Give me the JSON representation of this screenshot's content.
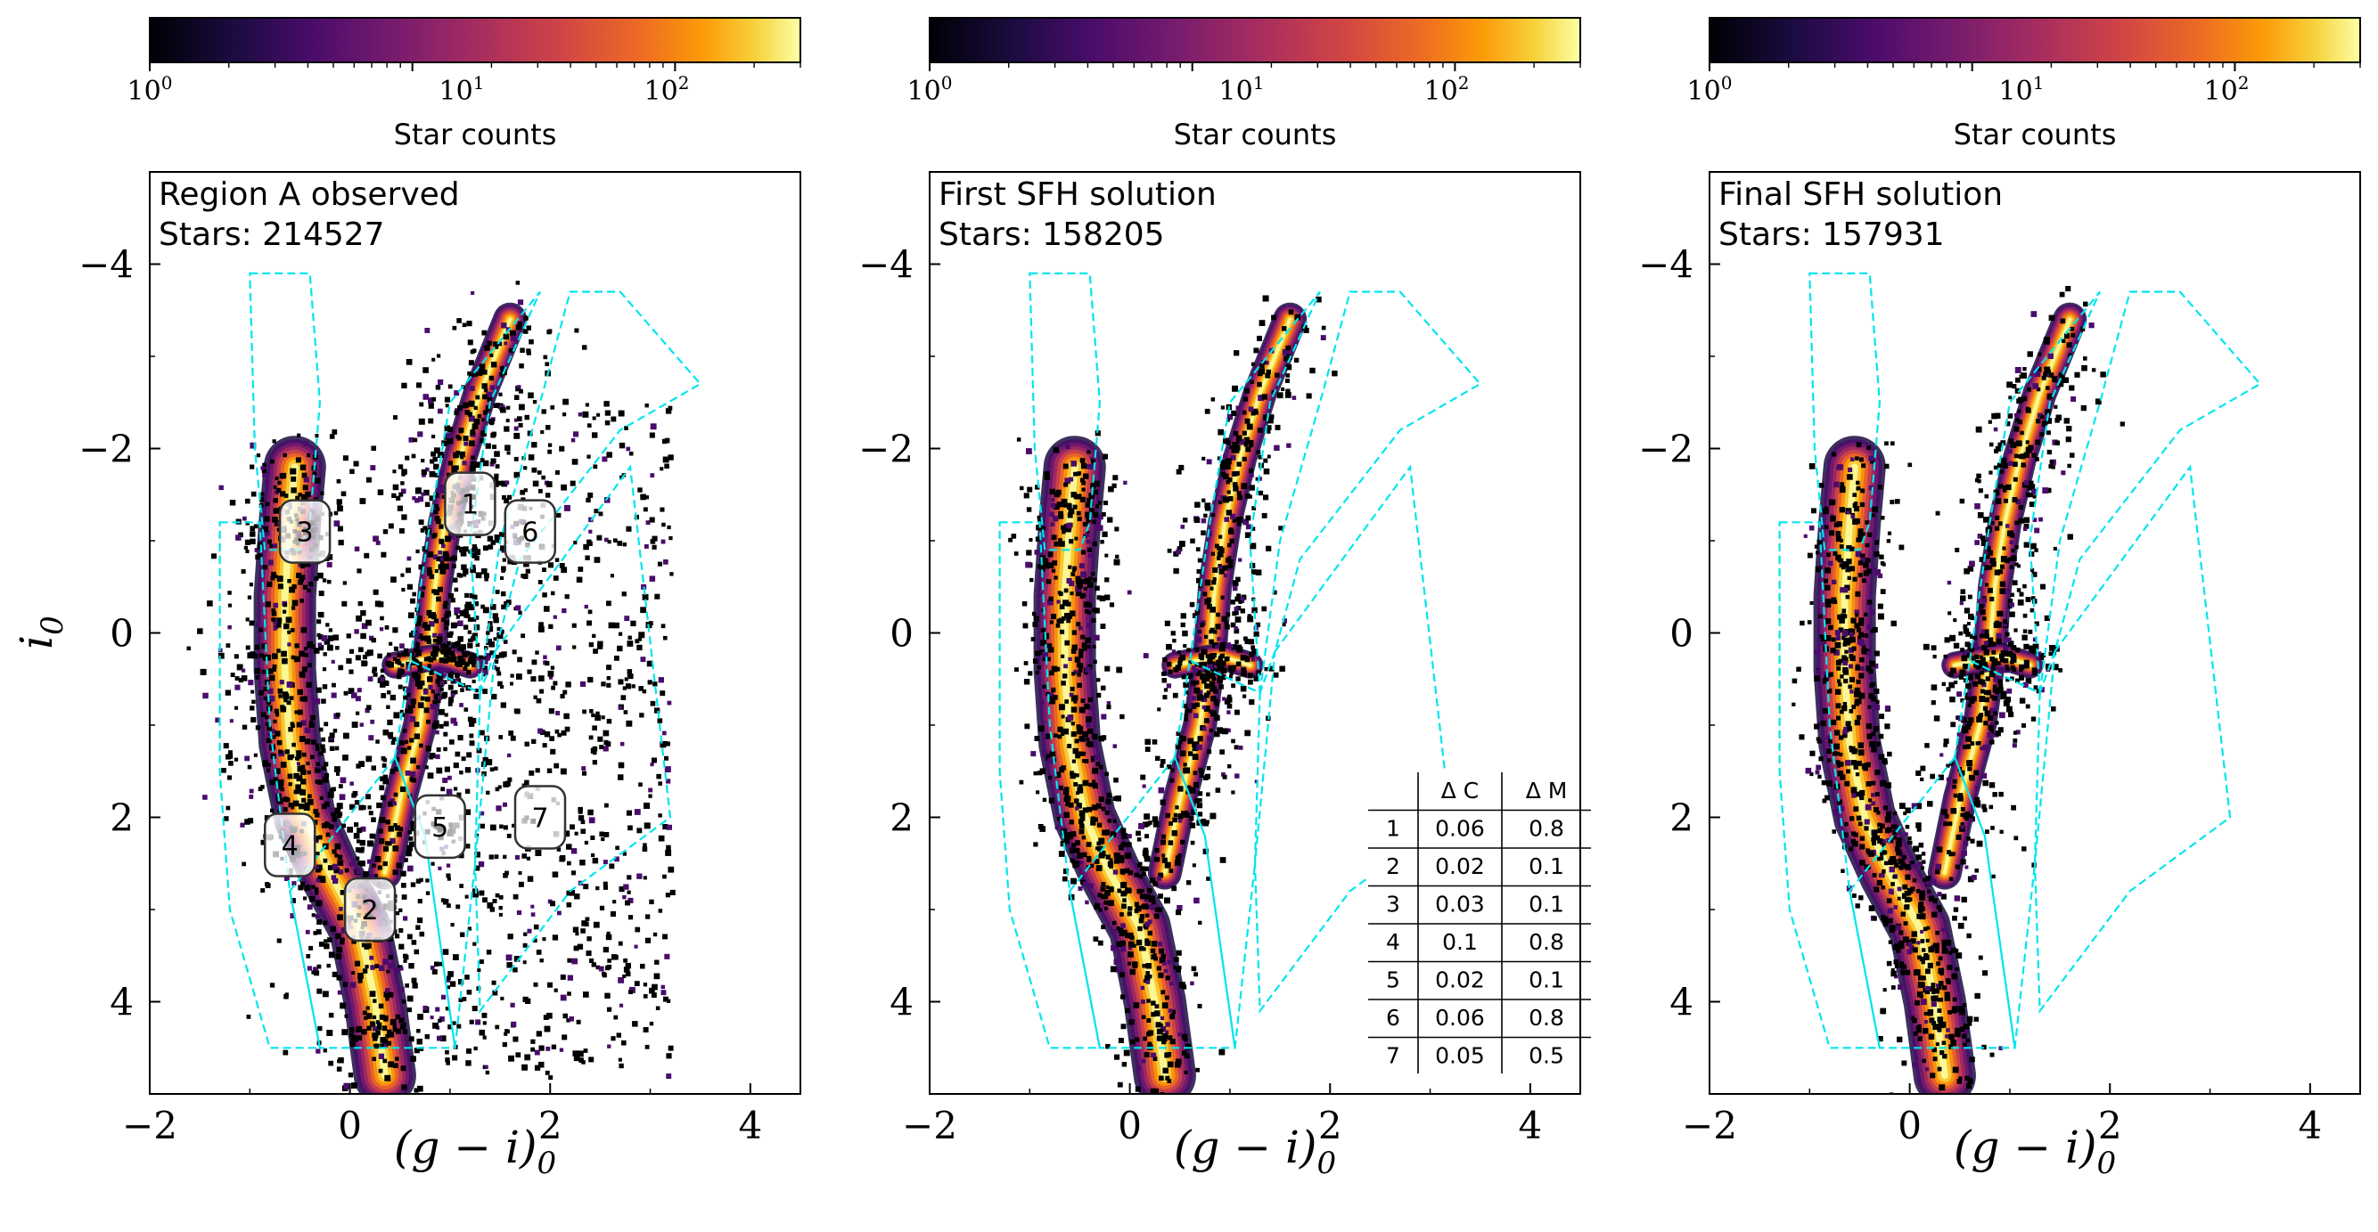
{
  "chart_data": [
    {
      "type": "heatmap",
      "panel_text": [
        "Region A observed",
        "Stars: 214527"
      ],
      "stars": 214527,
      "xlabel": "(g − i)0",
      "ylabel": "i0",
      "xlim": [
        -2,
        4.5
      ],
      "ylim": [
        5,
        -5
      ],
      "xticks": [
        "−2",
        "0",
        "2",
        "4"
      ],
      "yticks": [
        "−4",
        "−2",
        "0",
        "2",
        "4"
      ],
      "colorbar": {
        "label": "Star counts",
        "scale": "log",
        "range": [
          1,
          300
        ],
        "ticks": [
          "10^0",
          "10^1",
          "10^2"
        ],
        "colormap": "inferno"
      },
      "region_labels": [
        {
          "id": "1",
          "x": 1.2,
          "y": -1.4
        },
        {
          "id": "2",
          "x": 0.2,
          "y": 3.0
        },
        {
          "id": "3",
          "x": -0.45,
          "y": -1.1
        },
        {
          "id": "4",
          "x": -0.6,
          "y": 2.3
        },
        {
          "id": "5",
          "x": 0.9,
          "y": 2.1
        },
        {
          "id": "6",
          "x": 1.8,
          "y": -1.1
        },
        {
          "id": "7",
          "x": 1.9,
          "y": 2.0
        }
      ]
    },
    {
      "type": "heatmap",
      "panel_text": [
        "First SFH solution",
        "Stars: 158205"
      ],
      "stars": 158205,
      "xlabel": "(g − i)0",
      "xlim": [
        -2,
        4.5
      ],
      "ylim": [
        5,
        -5
      ],
      "xticks": [
        "−2",
        "0",
        "2",
        "4"
      ],
      "yticks": [
        "−4",
        "−2",
        "0",
        "2",
        "4"
      ],
      "colorbar": {
        "label": "Star counts",
        "scale": "log",
        "range": [
          1,
          300
        ],
        "ticks": [
          "10^0",
          "10^1",
          "10^2"
        ],
        "colormap": "inferno"
      },
      "table": {
        "columns": [
          "",
          "Δ C",
          "Δ M"
        ],
        "rows": [
          [
            "1",
            "0.06",
            "0.8"
          ],
          [
            "2",
            "0.02",
            "0.1"
          ],
          [
            "3",
            "0.03",
            "0.1"
          ],
          [
            "4",
            "0.1",
            "0.8"
          ],
          [
            "5",
            "0.02",
            "0.1"
          ],
          [
            "6",
            "0.06",
            "0.8"
          ],
          [
            "7",
            "0.05",
            "0.5"
          ]
        ]
      }
    },
    {
      "type": "heatmap",
      "panel_text": [
        "Final SFH solution",
        "Stars: 157931"
      ],
      "stars": 157931,
      "xlabel": "(g − i)0",
      "xlim": [
        -2,
        4.5
      ],
      "ylim": [
        5,
        -5
      ],
      "xticks": [
        "−2",
        "0",
        "2",
        "4"
      ],
      "yticks": [
        "−4",
        "−2",
        "0",
        "2",
        "4"
      ],
      "colorbar": {
        "label": "Star counts",
        "scale": "log",
        "range": [
          1,
          300
        ],
        "ticks": [
          "10^0",
          "10^1",
          "10^2"
        ],
        "colormap": "inferno"
      }
    }
  ],
  "regions": [
    {
      "id": "3",
      "polygon": [
        [
          -1.0,
          -3.9
        ],
        [
          -0.4,
          -3.9
        ],
        [
          -0.3,
          -2.5
        ],
        [
          -0.4,
          -1.2
        ],
        [
          -0.5,
          -0.9
        ],
        [
          -0.85,
          -0.9
        ],
        [
          -0.95,
          -2.0
        ]
      ]
    },
    {
      "id": "4",
      "polygon": [
        [
          -1.3,
          -1.2
        ],
        [
          -0.9,
          -1.2
        ],
        [
          -0.8,
          1.0
        ],
        [
          -0.6,
          2.8
        ],
        [
          -0.3,
          4.5
        ],
        [
          -0.8,
          4.5
        ],
        [
          -1.2,
          3.0
        ],
        [
          -1.3,
          1.5
        ]
      ]
    },
    {
      "id": "2",
      "polygon": [
        [
          -0.6,
          2.8
        ],
        [
          0.45,
          1.35
        ],
        [
          0.75,
          2.2
        ],
        [
          1.05,
          4.5
        ],
        [
          -0.3,
          4.5
        ]
      ]
    },
    {
      "id": "5",
      "polygon": [
        [
          0.45,
          1.35
        ],
        [
          0.6,
          0.3
        ],
        [
          1.3,
          0.65
        ],
        [
          1.25,
          2.5
        ],
        [
          1.1,
          4.0
        ],
        [
          1.05,
          4.5
        ],
        [
          0.75,
          2.2
        ]
      ]
    },
    {
      "id": "1",
      "polygon": [
        [
          0.6,
          0.3
        ],
        [
          0.8,
          -1.2
        ],
        [
          1.0,
          -2.5
        ],
        [
          1.9,
          -3.7
        ],
        [
          1.4,
          -2.5
        ],
        [
          1.2,
          -1.0
        ],
        [
          1.3,
          0.65
        ]
      ]
    },
    {
      "id": "6",
      "polygon": [
        [
          1.3,
          0.65
        ],
        [
          1.5,
          -1.0
        ],
        [
          1.9,
          -2.5
        ],
        [
          2.2,
          -3.7
        ],
        [
          2.7,
          -3.7
        ],
        [
          3.5,
          -2.7
        ],
        [
          2.7,
          -2.2
        ],
        [
          1.7,
          -0.8
        ],
        [
          1.45,
          0.2
        ]
      ]
    },
    {
      "id": "7",
      "polygon": [
        [
          1.45,
          0.2
        ],
        [
          2.8,
          -1.8
        ],
        [
          3.2,
          2.0
        ],
        [
          2.2,
          2.8
        ],
        [
          1.3,
          4.1
        ],
        [
          1.25,
          2.5
        ]
      ]
    }
  ],
  "population_tracks": [
    {
      "name": "main-sequence",
      "points": [
        [
          0.35,
          4.8
        ],
        [
          0.25,
          4.0
        ],
        [
          0.1,
          3.2
        ],
        [
          -0.2,
          2.6
        ],
        [
          -0.45,
          2.0
        ],
        [
          -0.6,
          1.2
        ],
        [
          -0.65,
          0.4
        ],
        [
          -0.65,
          -0.4
        ],
        [
          -0.6,
          -1.2
        ],
        [
          -0.55,
          -1.8
        ]
      ]
    },
    {
      "name": "red-giant-branch",
      "points": [
        [
          0.35,
          2.6
        ],
        [
          0.5,
          1.8
        ],
        [
          0.7,
          1.0
        ],
        [
          0.8,
          0.2
        ],
        [
          0.85,
          -0.5
        ],
        [
          0.95,
          -1.2
        ],
        [
          1.1,
          -1.9
        ],
        [
          1.3,
          -2.6
        ],
        [
          1.6,
          -3.4
        ]
      ]
    },
    {
      "name": "red-clump",
      "points": [
        [
          0.45,
          0.35
        ],
        [
          0.9,
          0.25
        ],
        [
          1.2,
          0.35
        ]
      ]
    }
  ]
}
